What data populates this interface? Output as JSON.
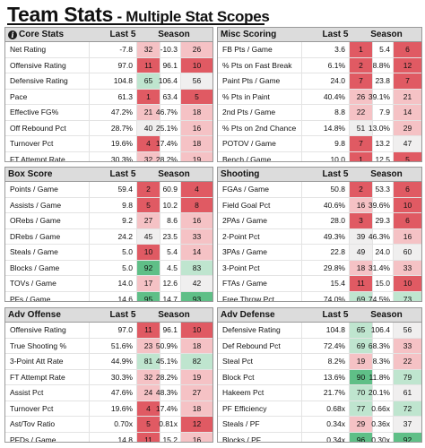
{
  "page": {
    "title": "Team Stats",
    "subtitle": "- Multiple Stat Scopes"
  },
  "headers": {
    "last5": "Last 5",
    "season": "Season"
  },
  "icons": {
    "info": "i"
  },
  "colors": {
    "bad_strong": "#e05a63",
    "bad_light": "#f5c2c5",
    "neutral": "#f0efef",
    "good_light": "#bfe5cf",
    "good_strong": "#5fbf87",
    "header_bg": "#dcdcdc"
  },
  "panels": [
    {
      "id": "core",
      "title": "Core Stats",
      "has_info_icon": true,
      "rows": [
        {
          "label": "Net Rating",
          "l5": "-7.8",
          "l5r": "32",
          "s": "-10.3",
          "sr": "26"
        },
        {
          "label": "Offensive Rating",
          "l5": "97.0",
          "l5r": "11",
          "s": "96.1",
          "sr": "10"
        },
        {
          "label": "Defensive Rating",
          "l5": "104.8",
          "l5r": "65",
          "s": "106.4",
          "sr": "56"
        },
        {
          "label": "Pace",
          "l5": "61.3",
          "l5r": "1",
          "s": "63.4",
          "sr": "5"
        },
        {
          "label": "Effective FG%",
          "l5": "47.2%",
          "l5r": "21",
          "s": "46.7%",
          "sr": "18"
        },
        {
          "label": "Off Rebound Pct",
          "l5": "28.7%",
          "l5r": "40",
          "s": "25.1%",
          "sr": "16"
        },
        {
          "label": "Turnover Pct",
          "l5": "19.6%",
          "l5r": "4",
          "s": "17.4%",
          "sr": "18"
        },
        {
          "label": "FT Attempt Rate",
          "l5": "30.3%",
          "l5r": "32",
          "s": "28.2%",
          "sr": "19"
        }
      ]
    },
    {
      "id": "misc",
      "title": "Misc Scoring",
      "has_info_icon": false,
      "rows": [
        {
          "label": "FB Pts / Game",
          "l5": "3.6",
          "l5r": "1",
          "s": "5.4",
          "sr": "6"
        },
        {
          "label": "% Pts on Fast Break",
          "l5": "6.1%",
          "l5r": "2",
          "s": "8.8%",
          "sr": "12"
        },
        {
          "label": "Paint Pts / Game",
          "l5": "24.0",
          "l5r": "7",
          "s": "23.8",
          "sr": "7"
        },
        {
          "label": "% Pts in Paint",
          "l5": "40.4%",
          "l5r": "26",
          "s": "39.1%",
          "sr": "21"
        },
        {
          "label": "2nd Pts / Game",
          "l5": "8.8",
          "l5r": "22",
          "s": "7.9",
          "sr": "14"
        },
        {
          "label": "% Pts on 2nd Chance",
          "l5": "14.8%",
          "l5r": "51",
          "s": "13.0%",
          "sr": "29"
        },
        {
          "label": "POTOV / Game",
          "l5": "9.8",
          "l5r": "7",
          "s": "13.2",
          "sr": "47"
        },
        {
          "label": "Bench / Game",
          "l5": "10.0",
          "l5r": "1",
          "s": "12.5",
          "sr": "5"
        }
      ]
    },
    {
      "id": "box",
      "title": "Box Score",
      "has_info_icon": false,
      "rows": [
        {
          "label": "Points / Game",
          "l5": "59.4",
          "l5r": "2",
          "s": "60.9",
          "sr": "4"
        },
        {
          "label": "Assists / Game",
          "l5": "9.8",
          "l5r": "5",
          "s": "10.2",
          "sr": "8"
        },
        {
          "label": "ORebs / Game",
          "l5": "9.2",
          "l5r": "27",
          "s": "8.6",
          "sr": "16"
        },
        {
          "label": "DRebs / Game",
          "l5": "24.2",
          "l5r": "45",
          "s": "23.5",
          "sr": "33"
        },
        {
          "label": "Steals / Game",
          "l5": "5.0",
          "l5r": "10",
          "s": "5.4",
          "sr": "14"
        },
        {
          "label": "Blocks / Game",
          "l5": "5.0",
          "l5r": "92",
          "s": "4.5",
          "sr": "83"
        },
        {
          "label": "TOVs / Game",
          "l5": "14.0",
          "l5r": "17",
          "s": "12.6",
          "sr": "42"
        },
        {
          "label": "PFs / Game",
          "l5": "14.6",
          "l5r": "95",
          "s": "14.7",
          "sr": "93"
        }
      ]
    },
    {
      "id": "shooting",
      "title": "Shooting",
      "has_info_icon": false,
      "rows": [
        {
          "label": "FGAs / Game",
          "l5": "50.8",
          "l5r": "2",
          "s": "53.3",
          "sr": "6"
        },
        {
          "label": "Field Goal Pct",
          "l5": "40.6%",
          "l5r": "16",
          "s": "39.6%",
          "sr": "10"
        },
        {
          "label": "2PAs / Game",
          "l5": "28.0",
          "l5r": "3",
          "s": "29.3",
          "sr": "6"
        },
        {
          "label": "2-Point Pct",
          "l5": "49.3%",
          "l5r": "39",
          "s": "46.3%",
          "sr": "16"
        },
        {
          "label": "3PAs / Game",
          "l5": "22.8",
          "l5r": "49",
          "s": "24.0",
          "sr": "60"
        },
        {
          "label": "3-Point Pct",
          "l5": "29.8%",
          "l5r": "18",
          "s": "31.4%",
          "sr": "33"
        },
        {
          "label": "FTAs / Game",
          "l5": "15.4",
          "l5r": "11",
          "s": "15.0",
          "sr": "10"
        },
        {
          "label": "Free Throw Pct",
          "l5": "74.0%",
          "l5r": "69",
          "s": "74.5%",
          "sr": "73"
        }
      ]
    },
    {
      "id": "advoff",
      "title": "Adv Offense",
      "has_info_icon": false,
      "rows": [
        {
          "label": "Offensive Rating",
          "l5": "97.0",
          "l5r": "11",
          "s": "96.1",
          "sr": "10"
        },
        {
          "label": "True Shooting %",
          "l5": "51.6%",
          "l5r": "23",
          "s": "50.9%",
          "sr": "18"
        },
        {
          "label": "3-Point Att Rate",
          "l5": "44.9%",
          "l5r": "81",
          "s": "45.1%",
          "sr": "82"
        },
        {
          "label": "FT Attempt Rate",
          "l5": "30.3%",
          "l5r": "32",
          "s": "28.2%",
          "sr": "19"
        },
        {
          "label": "Assist Pct",
          "l5": "47.6%",
          "l5r": "24",
          "s": "48.3%",
          "sr": "27"
        },
        {
          "label": "Turnover Pct",
          "l5": "19.6%",
          "l5r": "4",
          "s": "17.4%",
          "sr": "18"
        },
        {
          "label": "Ast/Tov Ratio",
          "l5": "0.70x",
          "l5r": "5",
          "s": "0.81x",
          "sr": "12"
        },
        {
          "label": "PFDs / Game",
          "l5": "14.8",
          "l5r": "11",
          "s": "15.2",
          "sr": "16"
        }
      ]
    },
    {
      "id": "advdef",
      "title": "Adv Defense",
      "has_info_icon": false,
      "rows": [
        {
          "label": "Defensive Rating",
          "l5": "104.8",
          "l5r": "65",
          "s": "106.4",
          "sr": "56"
        },
        {
          "label": "Def Rebound Pct",
          "l5": "72.4%",
          "l5r": "69",
          "s": "68.3%",
          "sr": "33"
        },
        {
          "label": "Steal Pct",
          "l5": "8.2%",
          "l5r": "19",
          "s": "8.3%",
          "sr": "22"
        },
        {
          "label": "Block Pct",
          "l5": "13.6%",
          "l5r": "90",
          "s": "11.8%",
          "sr": "79"
        },
        {
          "label": "Hakeem Pct",
          "l5": "21.7%",
          "l5r": "70",
          "s": "20.1%",
          "sr": "61"
        },
        {
          "label": "PF Efficiency",
          "l5": "0.68x",
          "l5r": "77",
          "s": "0.66x",
          "sr": "72"
        },
        {
          "label": "Steals / PF",
          "l5": "0.34x",
          "l5r": "29",
          "s": "0.36x",
          "sr": "37"
        },
        {
          "label": "Blocks / PF",
          "l5": "0.34x",
          "l5r": "96",
          "s": "0.30x",
          "sr": "92"
        }
      ]
    }
  ]
}
